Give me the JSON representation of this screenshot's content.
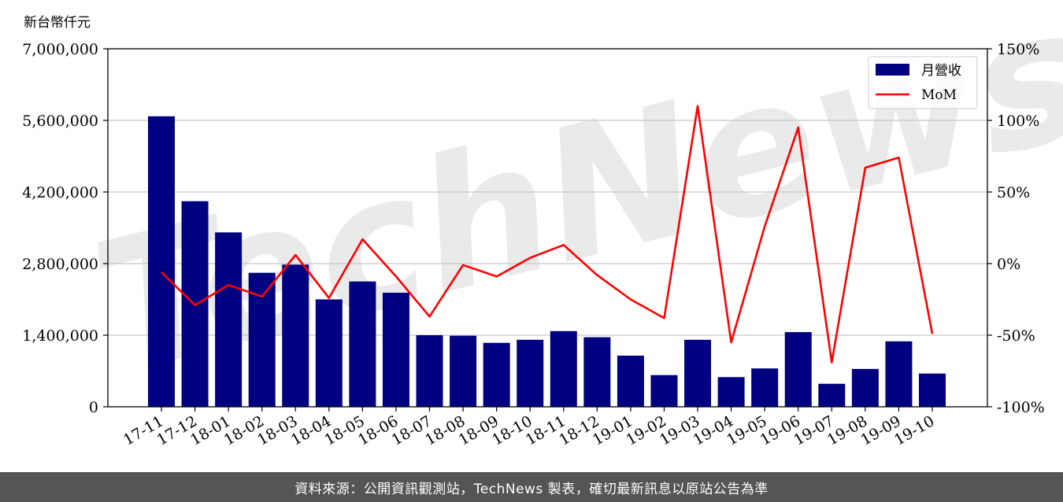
{
  "footer": {
    "source_note": "資料來源：公開資訊觀測站，TechNews 製表，確切最新訊息以原站公告為準"
  },
  "watermark": {
    "text": "TechNews"
  },
  "colors": {
    "bars": "#000080",
    "line": "#ff0000",
    "grid": "#c8c8c8",
    "footer_bg": "#555555"
  },
  "chart_data": {
    "type": "bar",
    "ylabel": "新台幣仟元",
    "y_left_ticks": [
      "0",
      "1,400,000",
      "2,800,000",
      "4,200,000",
      "5,600,000",
      "7,000,000"
    ],
    "y_right_ticks": [
      "-100%",
      "-50%",
      "0%",
      "50%",
      "100%",
      "150%"
    ],
    "ylim_left": [
      0,
      7000000
    ],
    "ylim_right": [
      -100,
      150
    ],
    "grid": true,
    "legend_position": "top-right",
    "categories": [
      "17-11",
      "17-12",
      "18-01",
      "18-02",
      "18-03",
      "18-04",
      "18-05",
      "18-06",
      "18-07",
      "18-08",
      "18-09",
      "18-10",
      "18-11",
      "18-12",
      "19-01",
      "19-02",
      "19-03",
      "19-04",
      "19-05",
      "19-06",
      "19-07",
      "19-08",
      "19-09",
      "19-10"
    ],
    "series": [
      {
        "name": "月營收",
        "type": "bar",
        "values": [
          5680000,
          4020000,
          3410000,
          2620000,
          2780000,
          2100000,
          2450000,
          2230000,
          1400000,
          1390000,
          1250000,
          1310000,
          1480000,
          1360000,
          1000000,
          620000,
          1310000,
          580000,
          750000,
          1460000,
          450000,
          740000,
          1280000,
          650000
        ]
      },
      {
        "name": "MoM",
        "type": "line",
        "axis": "right",
        "values": [
          -6,
          -29,
          -15,
          -23,
          6,
          -24,
          17,
          -9,
          -37,
          -1,
          -9,
          4,
          13,
          -8,
          -25,
          -38,
          110,
          -55,
          26,
          95,
          -69,
          67,
          74,
          -49
        ]
      }
    ]
  }
}
